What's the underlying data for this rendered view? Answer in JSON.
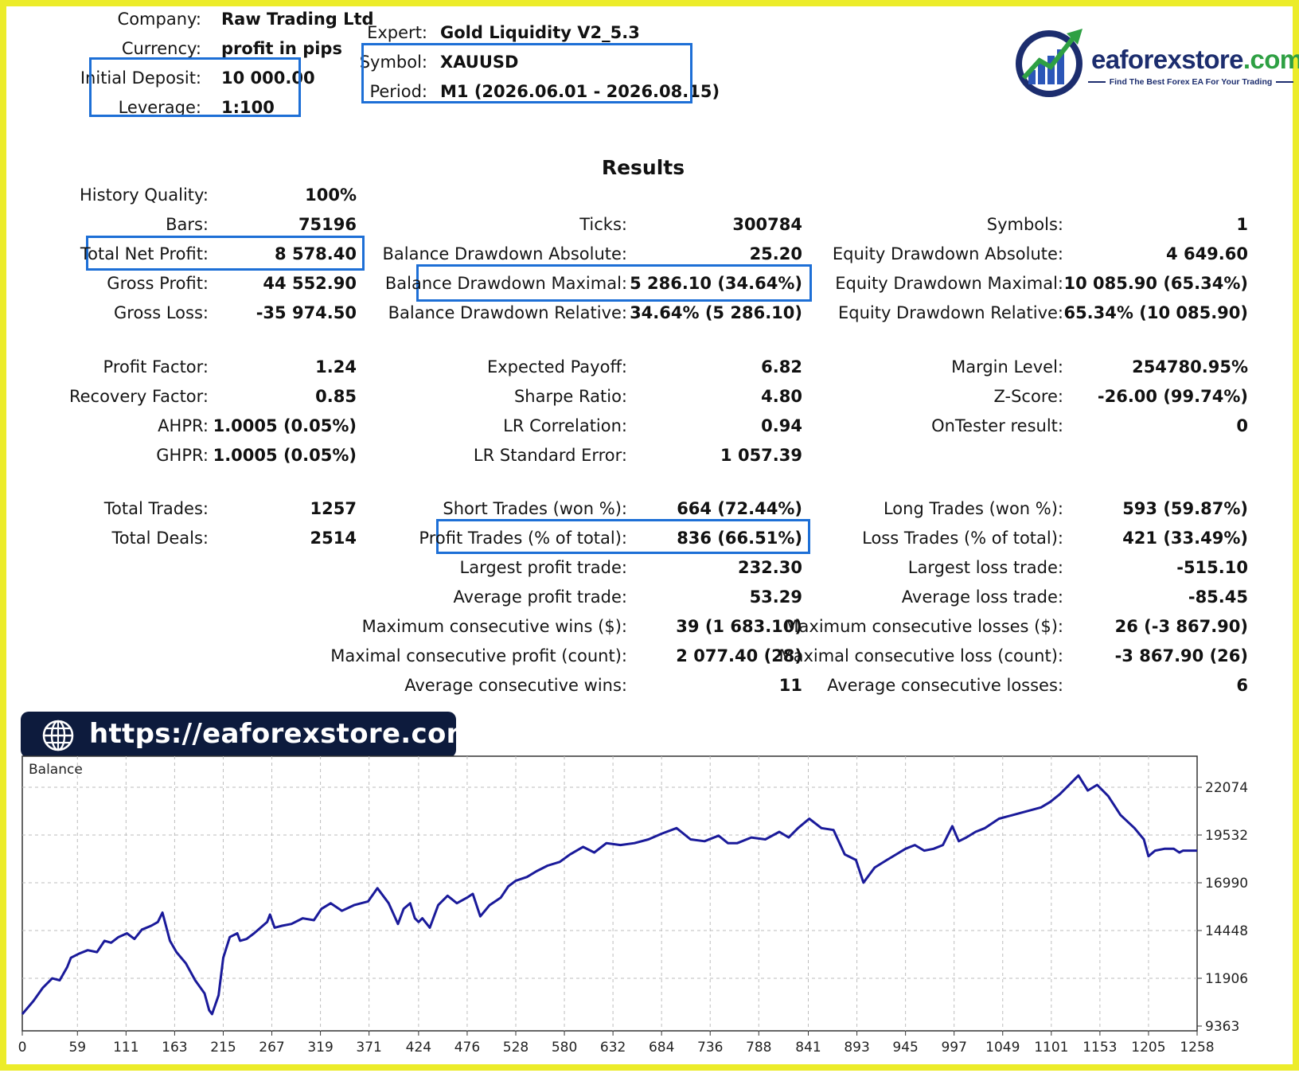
{
  "header": {
    "company_label": "Company:",
    "company_value": "Raw Trading Ltd",
    "currency_label": "Currency:",
    "currency_value": "profit in pips",
    "deposit_label": "Initial Deposit:",
    "deposit_value": "10 000.00",
    "leverage_label": "Leverage:",
    "leverage_value": "1:100",
    "expert_label": "Expert:",
    "expert_value": "Gold Liquidity V2_5.3",
    "symbol_label": "Symbol:",
    "symbol_value": "XAUUSD",
    "period_label": "Period:",
    "period_value": "M1 (2026.06.01 - 2026.08.15)"
  },
  "logo": {
    "brand_main": "eaforexstore",
    "brand_suffix": ".com",
    "tagline": "Find The Best Forex EA For Your Trading"
  },
  "results": {
    "title": "Results",
    "col1": [
      {
        "label": "History Quality:",
        "value": "100%"
      },
      {
        "label": "Bars:",
        "value": "75196"
      },
      {
        "label": "Total Net Profit:",
        "value": "8 578.40"
      },
      {
        "label": "Gross Profit:",
        "value": "44 552.90"
      },
      {
        "label": "Gross Loss:",
        "value": "-35 974.50"
      },
      {
        "label": "Profit Factor:",
        "value": "1.24"
      },
      {
        "label": "Recovery Factor:",
        "value": "0.85"
      },
      {
        "label": "AHPR:",
        "value": "1.0005 (0.05%)"
      },
      {
        "label": "GHPR:",
        "value": "1.0005 (0.05%)"
      },
      {
        "label": "Total Trades:",
        "value": "1257"
      },
      {
        "label": "Total Deals:",
        "value": "2514"
      }
    ],
    "col2": [
      {
        "label": "Ticks:",
        "value": "300784"
      },
      {
        "label": "Balance Drawdown Absolute:",
        "value": "25.20"
      },
      {
        "label": "Balance Drawdown Maximal:",
        "value": "5 286.10 (34.64%)"
      },
      {
        "label": "Balance Drawdown Relative:",
        "value": "34.64% (5 286.10)"
      },
      {
        "label": "Expected Payoff:",
        "value": "6.82"
      },
      {
        "label": "Sharpe Ratio:",
        "value": "4.80"
      },
      {
        "label": "LR Correlation:",
        "value": "0.94"
      },
      {
        "label": "LR Standard Error:",
        "value": "1 057.39"
      },
      {
        "label": "Short Trades (won %):",
        "value": "664 (72.44%)"
      },
      {
        "label": "Profit Trades (% of total):",
        "value": "836 (66.51%)"
      },
      {
        "label": "Largest profit trade:",
        "value": "232.30"
      },
      {
        "label": "Average profit trade:",
        "value": "53.29"
      },
      {
        "label": "Maximum consecutive wins ($):",
        "value": "39 (1 683.10)"
      },
      {
        "label": "Maximal consecutive profit (count):",
        "value": "2 077.40 (28)"
      },
      {
        "label": "Average consecutive wins:",
        "value": "11"
      }
    ],
    "col3": [
      {
        "label": "Symbols:",
        "value": "1"
      },
      {
        "label": "Equity Drawdown Absolute:",
        "value": "4 649.60"
      },
      {
        "label": "Equity Drawdown Maximal:",
        "value": "10 085.90 (65.34%)"
      },
      {
        "label": "Equity Drawdown Relative:",
        "value": "65.34% (10 085.90)"
      },
      {
        "label": "Margin Level:",
        "value": "254780.95%"
      },
      {
        "label": "Z-Score:",
        "value": "-26.00 (99.74%)"
      },
      {
        "label": "OnTester result:",
        "value": "0"
      },
      {
        "label": "Long Trades (won %):",
        "value": "593 (59.87%)"
      },
      {
        "label": "Loss Trades (% of total):",
        "value": "421 (33.49%)"
      },
      {
        "label": "Largest loss trade:",
        "value": "-515.10"
      },
      {
        "label": "Average loss trade:",
        "value": "-85.45"
      },
      {
        "label": "Maximum consecutive losses ($):",
        "value": "26 (-3 867.90)"
      },
      {
        "label": "Maximal consecutive loss (count):",
        "value": "-3 867.90 (26)"
      },
      {
        "label": "Average consecutive losses:",
        "value": "6"
      }
    ]
  },
  "banner": {
    "url": "https://eaforexstore.com/"
  },
  "colors": {
    "highlight": "#1d6fd6",
    "frame": "#ecec2a",
    "line": "#1a1a9a",
    "banner": "#0d1b3d",
    "brand_green": "#2ea043"
  },
  "icons": {
    "banner_icon": "globe-icon"
  },
  "chart_data": {
    "type": "line",
    "title": "Balance",
    "xlabel": "",
    "ylabel": "",
    "x_ticks": [
      0,
      59,
      111,
      163,
      215,
      267,
      319,
      371,
      424,
      476,
      528,
      580,
      632,
      684,
      736,
      788,
      841,
      893,
      945,
      997,
      1049,
      1101,
      1153,
      1205,
      1258
    ],
    "y_ticks": [
      9363,
      11906,
      14448,
      16990,
      19532,
      22074
    ],
    "xlim": [
      0,
      1257
    ],
    "ylim": [
      9363,
      22074
    ],
    "grid": true,
    "series": [
      {
        "values_x": [
          0,
          12,
          22,
          32,
          40,
          48,
          52,
          60,
          70,
          80,
          88,
          95,
          103,
          112,
          120,
          128,
          138,
          145,
          150,
          158,
          165,
          175,
          185,
          195,
          200,
          203,
          210,
          215,
          222,
          230,
          233,
          240,
          248,
          255,
          262,
          265,
          270,
          278,
          288,
          300,
          312,
          320,
          330,
          342,
          355,
          370,
          380,
          392,
          402,
          408,
          415,
          420,
          424,
          428,
          436,
          445,
          455,
          465,
          476,
          482,
          490,
          500,
          512,
          520,
          528,
          540,
          550,
          562,
          575,
          586,
          600,
          612,
          625,
          640,
          655,
          670,
          684,
          700,
          715,
          730,
          745,
          755,
          765,
          780,
          795,
          810,
          820,
          830,
          842,
          855,
          868,
          880,
          892,
          900,
          912,
          925,
          935,
          945,
          955,
          965,
          975,
          985,
          995,
          1002,
          1010,
          1020,
          1030,
          1045,
          1060,
          1075,
          1090,
          1100,
          1110,
          1118,
          1130,
          1140,
          1150,
          1162,
          1175,
          1190,
          1200,
          1205,
          1212,
          1222,
          1232,
          1238,
          1242,
          1246,
          1250,
          1257
        ],
        "values": [
          10000,
          10700,
          11400,
          11900,
          11800,
          12500,
          13000,
          13200,
          13400,
          13300,
          13900,
          13800,
          14100,
          14300,
          14000,
          14500,
          14700,
          14900,
          15400,
          13900,
          13300,
          12700,
          11800,
          11100,
          10200,
          10000,
          11000,
          13000,
          14100,
          14300,
          13900,
          14000,
          14300,
          14600,
          14900,
          15300,
          14600,
          14700,
          14800,
          15100,
          15000,
          15600,
          15900,
          15500,
          15800,
          16000,
          16700,
          15900,
          14800,
          15600,
          15900,
          15100,
          14900,
          15100,
          14600,
          15800,
          16300,
          15900,
          16200,
          16400,
          15200,
          15800,
          16200,
          16800,
          17100,
          17300,
          17600,
          17900,
          18100,
          18500,
          18900,
          18600,
          19100,
          19000,
          19100,
          19300,
          19600,
          19900,
          19300,
          19200,
          19500,
          19100,
          19100,
          19400,
          19300,
          19700,
          19400,
          19900,
          20400,
          19900,
          19800,
          18500,
          18200,
          17000,
          17800,
          18200,
          18500,
          18800,
          19000,
          18700,
          18800,
          19000,
          20000,
          19200,
          19400,
          19700,
          19900,
          20400,
          20600,
          20800,
          21000,
          21300,
          21700,
          22100,
          22700,
          21900,
          22200,
          21600,
          20600,
          19900,
          19300,
          18400,
          18700,
          18800,
          18800,
          18600,
          18700,
          18700,
          18700,
          18700
        ]
      }
    ]
  }
}
